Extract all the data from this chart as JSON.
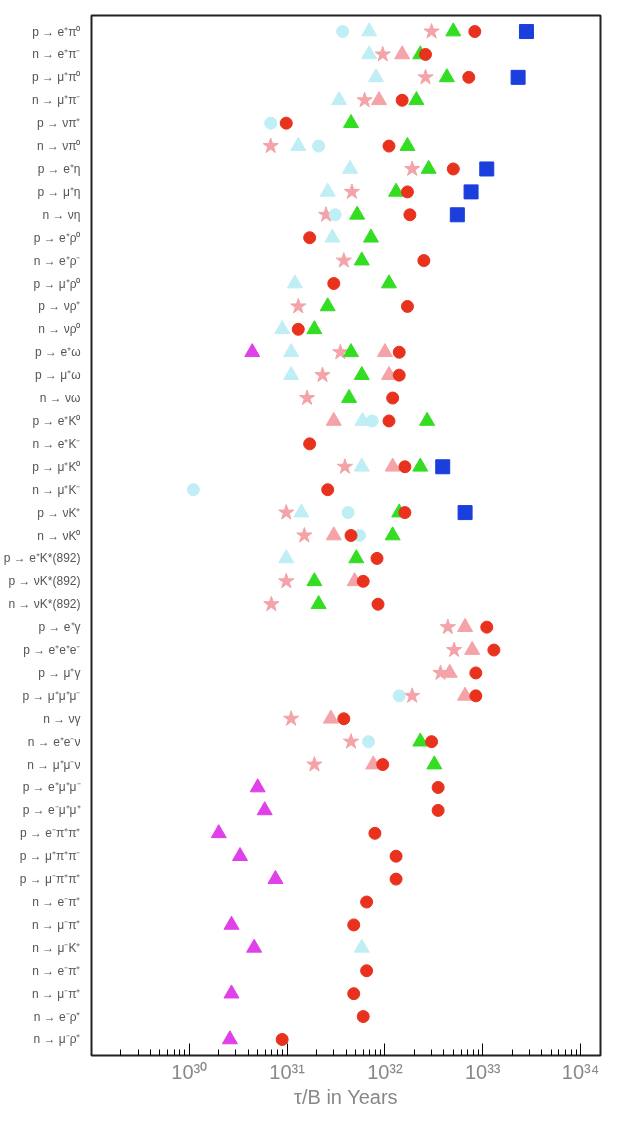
{
  "chart_data": {
    "type": "scatter",
    "orientation": "horizontal",
    "log": "x",
    "grid": false,
    "xlabel": "τ/B in Years",
    "xlim": [
      1e+29,
      1.6e+34
    ],
    "xticks": [
      {
        "value": 1e+30,
        "label": "10³⁰"
      },
      {
        "value": 1e+31,
        "label": "10³¹"
      },
      {
        "value": 1e+32,
        "label": "10³²"
      },
      {
        "value": 1e+33,
        "label": "10³³"
      },
      {
        "value": 1e+34,
        "label": "10³⁴"
      }
    ],
    "categories": [
      "p → e⁺π⁰",
      "n → e⁺π⁻",
      "p → μ⁺π⁰",
      "n → μ⁺π⁻",
      "p → νπ⁺",
      "n → νπ⁰",
      "p → e⁺η",
      "p → μ⁺η",
      "n → νη",
      "p → e⁺ρ⁰",
      "n → e⁺ρ⁻",
      "p → μ⁺ρ⁰",
      "p → νρ⁺",
      "n → νρ⁰",
      "p → e⁺ω",
      "p → μ⁺ω",
      "n → νω",
      "p → e⁺K⁰",
      "n → e⁺K⁻",
      "p → μ⁺K⁰",
      "n → μ⁺K⁻",
      "p → νK⁺",
      "n → νK⁰",
      "p → e⁺K*(892)",
      "p → νK*(892)",
      "n → νK*(892)",
      "p → e⁺γ",
      "p → e⁺e⁺e⁻",
      "p → μ⁺γ",
      "p → μ⁺μ⁺μ⁻",
      "n → νγ",
      "n → e⁺e⁻ν",
      "n → μ⁺μ⁻ν",
      "p → e⁺μ⁺μ⁻",
      "p → e⁻μ⁺μ⁺",
      "p → e⁻π⁺π⁺",
      "p → μ⁺π⁺π⁻",
      "p → μ⁻π⁺π⁺",
      "n → e⁻π⁺",
      "n → μ⁻π⁺",
      "n → μ⁻K⁺",
      "n → e⁻π⁺",
      "n → μ⁻π⁺",
      "n → e⁻ρ⁺",
      "n → μ⁻ρ⁺"
    ],
    "series": [
      {
        "color": "#f4a3a8",
        "marker": "star",
        "values": [
          3e+32,
          9.5e+31,
          2.6e+32,
          6.2e+31,
          null,
          6.8e+30,
          1.9e+32,
          4.6e+31,
          2.5e+31,
          null,
          3.8e+31,
          null,
          1.3e+31,
          null,
          3.5e+31,
          2.3e+31,
          1.6e+31,
          null,
          null,
          3.9e+31,
          null,
          9.8e+30,
          1.5e+31,
          null,
          9.8e+30,
          6.9e+30,
          4.4e+32,
          5.1e+32,
          3.7e+32,
          1.9e+32,
          1.1e+31,
          4.5e+31,
          1.9e+31,
          null,
          null,
          null,
          null,
          null,
          null,
          null,
          null,
          null,
          null,
          null,
          null
        ]
      },
      {
        "color": "#f4a3a8",
        "marker": "triangle",
        "values": [
          null,
          1.5e+32,
          null,
          8.7e+31,
          null,
          null,
          null,
          null,
          null,
          null,
          null,
          null,
          null,
          null,
          1e+32,
          1.1e+32,
          null,
          3e+31,
          null,
          1.2e+32,
          null,
          null,
          3e+31,
          null,
          4.9e+31,
          null,
          6.6e+32,
          7.8e+32,
          4.6e+32,
          6.6e+32,
          2.8e+31,
          null,
          7.6e+31,
          null,
          null,
          null,
          null,
          null,
          null,
          null,
          null,
          null,
          null,
          null,
          null
        ]
      },
      {
        "color": "#bfeef4",
        "marker": "triangle",
        "values": [
          6.9e+31,
          6.9e+31,
          8.1e+31,
          3.4e+31,
          null,
          1.3e+31,
          4.4e+31,
          2.6e+31,
          null,
          2.9e+31,
          null,
          1.2e+31,
          null,
          8.9e+30,
          1.1e+31,
          1.1e+31,
          null,
          5.9e+31,
          null,
          5.8e+31,
          null,
          1.4e+31,
          null,
          9.8e+30,
          null,
          null,
          null,
          null,
          null,
          null,
          null,
          null,
          null,
          null,
          null,
          null,
          null,
          null,
          null,
          null,
          5.8e+31,
          null,
          null,
          null,
          null
        ]
      },
      {
        "color": "#bfeef4",
        "marker": "circle",
        "values": [
          3.7e+31,
          null,
          null,
          null,
          6.8e+30,
          2.1e+31,
          null,
          null,
          3.1e+31,
          null,
          null,
          null,
          null,
          null,
          null,
          null,
          null,
          7.4e+31,
          null,
          null,
          1.1e+30,
          4.2e+31,
          5.5e+31,
          null,
          null,
          null,
          null,
          null,
          null,
          1.4e+32,
          null,
          6.8e+31,
          null,
          null,
          null,
          null,
          null,
          null,
          null,
          null,
          null,
          null,
          null,
          null,
          null
        ]
      },
      {
        "color": "#33dd22",
        "marker": "triangle",
        "values": [
          5e+32,
          2.3e+32,
          4.3e+32,
          2.1e+32,
          4.5e+31,
          1.7e+32,
          2.8e+32,
          1.3e+32,
          5.2e+31,
          7.2e+31,
          5.8e+31,
          1.1e+32,
          2.6e+31,
          1.9e+31,
          4.5e+31,
          5.8e+31,
          4.3e+31,
          2.7e+32,
          null,
          2.3e+32,
          null,
          1.4e+32,
          1.2e+32,
          5.1e+31,
          1.9e+31,
          2.1e+31,
          null,
          null,
          null,
          null,
          null,
          2.3e+32,
          3.2e+32,
          null,
          null,
          null,
          null,
          null,
          null,
          null,
          null,
          null,
          null,
          null,
          null
        ]
      },
      {
        "color": "#e8321e",
        "marker": "circle",
        "values": [
          8.3e+32,
          2.6e+32,
          7.2e+32,
          1.5e+32,
          9.8e+30,
          1.1e+32,
          5e+32,
          1.7e+32,
          1.8e+32,
          1.7e+31,
          2.5e+32,
          3e+31,
          1.7e+32,
          1.3e+31,
          1.4e+32,
          1.4e+32,
          1.2e+32,
          1.1e+32,
          1.7e+31,
          1.6e+32,
          2.6e+31,
          1.6e+32,
          4.5e+31,
          8.3e+31,
          6e+31,
          8.5e+31,
          1.1e+33,
          1.3e+33,
          8.5e+32,
          8.5e+32,
          3.8e+31,
          3e+32,
          9.5e+31,
          3.5e+32,
          3.5e+32,
          7.9e+31,
          1.3e+32,
          1.3e+32,
          6.5e+31,
          4.8e+31,
          null,
          6.5e+31,
          4.8e+31,
          6e+31,
          8.9e+30
        ]
      },
      {
        "color": "#1a3fdc",
        "marker": "square",
        "values": [
          2.8e+33,
          null,
          2.3e+33,
          null,
          null,
          null,
          1.1e+33,
          7.6e+32,
          5.5e+32,
          null,
          null,
          null,
          null,
          null,
          null,
          null,
          null,
          null,
          null,
          3.9e+32,
          null,
          6.6e+32,
          null,
          null,
          null,
          null,
          null,
          null,
          null,
          null,
          null,
          null,
          null,
          null,
          null,
          null,
          null,
          null,
          null,
          null,
          null,
          null,
          null,
          null,
          null
        ]
      },
      {
        "color": "#e040e8",
        "marker": "triangle",
        "values": [
          null,
          null,
          null,
          null,
          null,
          null,
          null,
          null,
          null,
          null,
          null,
          null,
          null,
          null,
          4.4e+30,
          null,
          null,
          null,
          null,
          null,
          null,
          null,
          null,
          null,
          null,
          null,
          null,
          null,
          null,
          null,
          null,
          null,
          null,
          5e+30,
          5.9e+30,
          2e+30,
          3.3e+30,
          7.6e+30,
          null,
          2.7e+30,
          4.6e+30,
          null,
          2.7e+30,
          null,
          2.6e+30
        ]
      }
    ]
  }
}
